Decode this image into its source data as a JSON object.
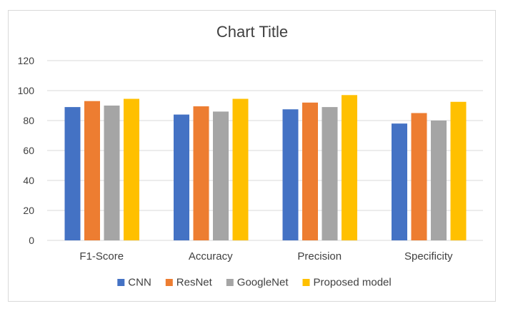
{
  "chart_data": {
    "type": "bar",
    "title": "Chart Title",
    "xlabel": "",
    "ylabel": "",
    "categories": [
      "F1-Score",
      "Accuracy",
      "Precision",
      "Specificity"
    ],
    "ylim": [
      0,
      120
    ],
    "yticks": [
      0,
      20,
      40,
      60,
      80,
      100,
      120
    ],
    "grid": true,
    "legend_position": "bottom",
    "series": [
      {
        "name": "CNN",
        "color": "#4472c4",
        "values": [
          89,
          84,
          87.5,
          78
        ]
      },
      {
        "name": "ResNet",
        "color": "#ed7d31",
        "values": [
          93,
          89.5,
          92,
          85
        ]
      },
      {
        "name": "GoogleNet",
        "color": "#a5a5a5",
        "values": [
          90,
          86,
          89,
          80
        ]
      },
      {
        "name": "Proposed model",
        "color": "#ffc000",
        "values": [
          94.5,
          94.5,
          97,
          92.5
        ]
      }
    ]
  }
}
